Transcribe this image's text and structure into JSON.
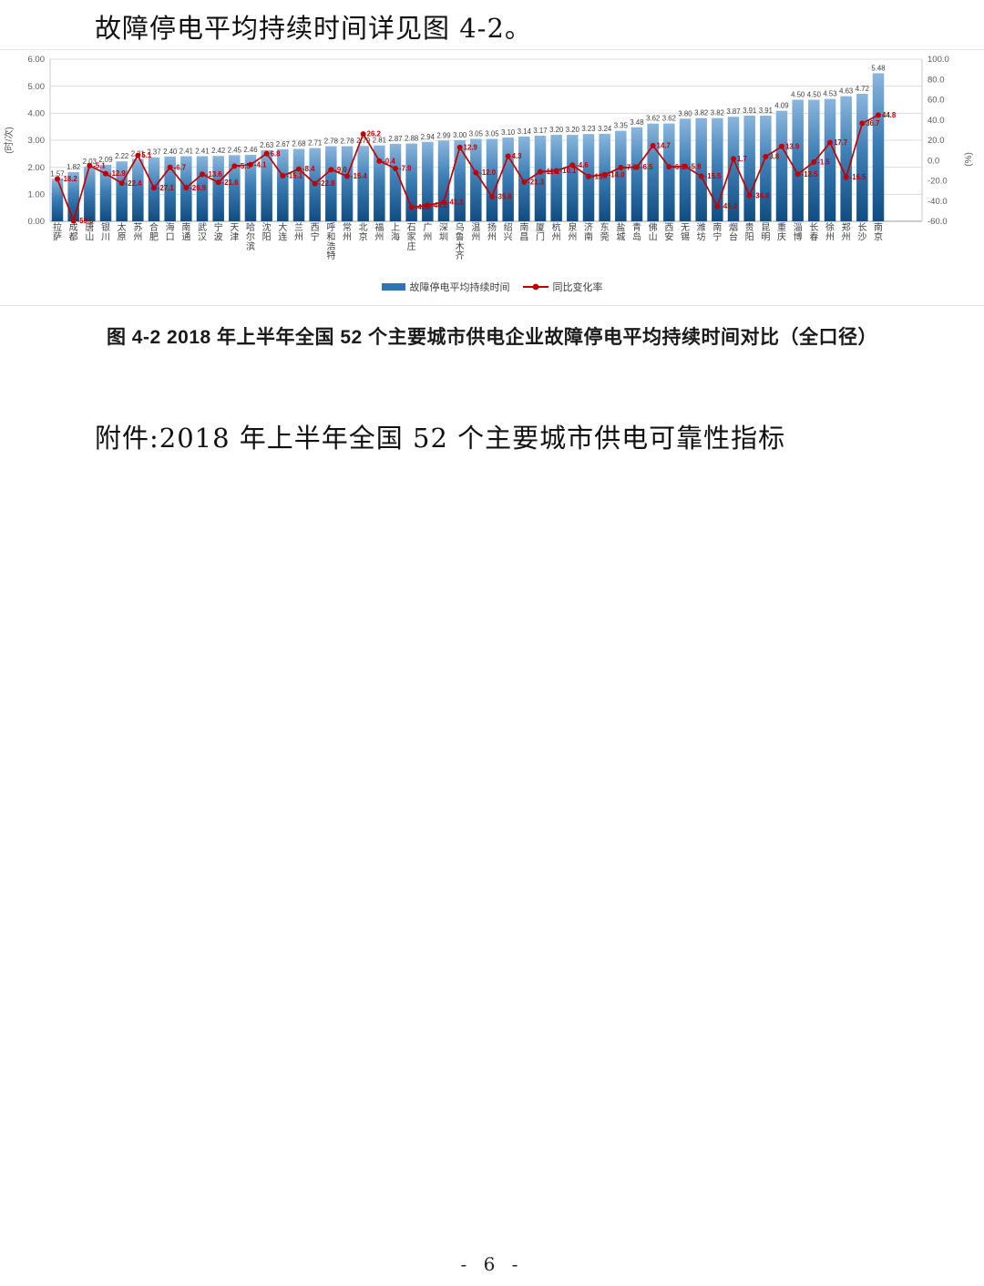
{
  "page": {
    "heading": "故障停电平均持续时间详见图 4-2。",
    "caption": "图 4-2   2018 年上半年全国 52 个主要城市供电企业故障停电平均持续时间对比（全口径）",
    "attachment_line": "附件:2018 年上半年全国 52 个主要城市供电可靠性指标",
    "page_number": "- 6 -"
  },
  "chart_data": {
    "type": "bar",
    "subtype": "bar-line-combo",
    "title": "",
    "xlabel": "",
    "legend_position": "bottom",
    "grid": true,
    "categories": [
      "拉萨",
      "成都",
      "唐山",
      "银川",
      "太原",
      "苏州",
      "合肥",
      "海口",
      "南通",
      "武汉",
      "宁波",
      "天津",
      "哈尔滨",
      "沈阳",
      "大连",
      "兰州",
      "西宁",
      "呼和浩特",
      "常州",
      "北京",
      "福州",
      "上海",
      "石家庄",
      "广州",
      "深圳",
      "乌鲁木齐",
      "温州",
      "扬州",
      "绍兴",
      "南昌",
      "厦门",
      "杭州",
      "泉州",
      "济南",
      "东莞",
      "盐城",
      "青岛",
      "佛山",
      "西安",
      "无锡",
      "潍坊",
      "南宁",
      "烟台",
      "贵阳",
      "昆明",
      "重庆",
      "淄博",
      "长春",
      "徐州",
      "郑州",
      "长沙",
      "南京"
    ],
    "series": [
      {
        "name": "故障停电平均持续时间",
        "type": "bar",
        "axis": "left",
        "color_top": "#8ab6dd",
        "color_mid": "#3e7fb6",
        "color_bottom": "#0f4c81",
        "values": [
          1.57,
          1.82,
          2.03,
          2.09,
          2.22,
          2.31,
          2.37,
          2.4,
          2.41,
          2.41,
          2.42,
          2.45,
          2.46,
          2.63,
          2.67,
          2.68,
          2.71,
          2.78,
          2.78,
          2.79,
          2.81,
          2.87,
          2.88,
          2.94,
          2.99,
          3.0,
          3.05,
          3.05,
          3.1,
          3.14,
          3.17,
          3.2,
          3.2,
          3.23,
          3.24,
          3.35,
          3.48,
          3.62,
          3.62,
          3.8,
          3.82,
          3.82,
          3.87,
          3.91,
          3.91,
          4.09,
          4.5,
          4.5,
          4.53,
          4.63,
          4.72,
          5.48
        ]
      },
      {
        "name": "同比变化率",
        "type": "line",
        "axis": "right",
        "color": "#c00000",
        "values": [
          -18.2,
          -59.5,
          -5.1,
          -12.9,
          -22.4,
          5.1,
          -27.1,
          -6.7,
          -26.9,
          -13.6,
          -21.6,
          -5.5,
          -4.1,
          6.8,
          -15.1,
          -8.4,
          -22.8,
          -9.0,
          -15.4,
          26.2,
          -0.4,
          -7.9,
          -46.2,
          -44.2,
          -41.1,
          12.9,
          -12.0,
          -35.6,
          4.3,
          -21.3,
          -11.1,
          -10.1,
          -4.6,
          -15.7,
          -14.0,
          -7.0,
          -6.5,
          14.7,
          -6.3,
          -5.8,
          -15.5,
          -45.3,
          1.7,
          -34.6,
          3.8,
          13.9,
          -13.5,
          -1.5,
          17.7,
          -16.5,
          36.7,
          44.8
        ]
      }
    ],
    "y_left": {
      "label": "(时/次)",
      "min": 0,
      "max": 6,
      "step": 1,
      "tick_labels": [
        "6.00",
        "5.00",
        "4.00",
        "3.00",
        "2.00",
        "1.00",
        "0.00"
      ]
    },
    "y_right": {
      "label": "(%)",
      "min": -60,
      "max": 100,
      "step": 20,
      "tick_labels": [
        "100.0",
        "80.0",
        "60.0",
        "40.0",
        "20.0",
        "0.0",
        "-20.0",
        "-40.0",
        "-60.0"
      ]
    }
  }
}
